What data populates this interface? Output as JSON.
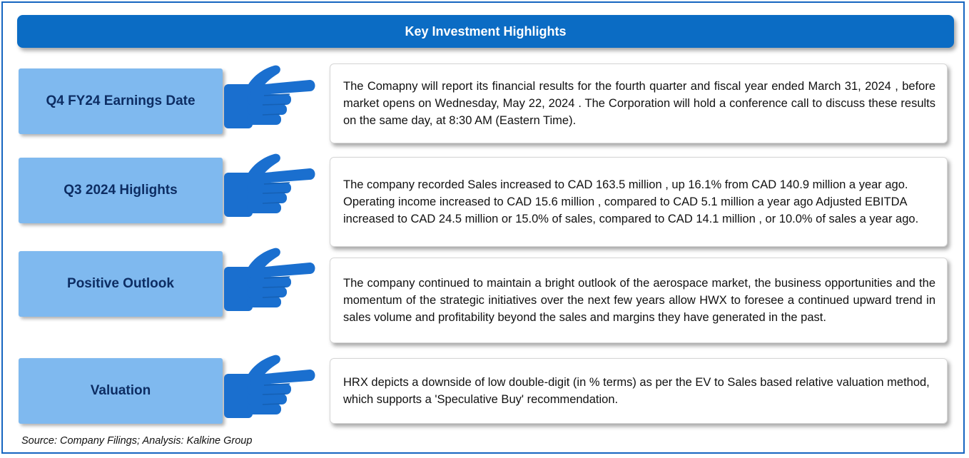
{
  "header": {
    "title": "Key Investment Highlights"
  },
  "rows": [
    {
      "label": "Q4 FY24 Earnings Date",
      "text": "The  Comapny will report its financial results for the fourth quarter and fiscal year ended March 31, 2024 , before market opens on Wednesday, May 22, 2024 . The Corporation will hold a conference call to discuss these results on the same day, at 8:30 AM (Eastern Time)."
    },
    {
      "label": "Q3 2024 Higlights",
      "text": "The company  recorded  Sales increased to CAD 163.5 million , up 16.1% from CAD 140.9 million a year ago. Operating income increased to CAD 15.6 million , compared to CAD 5.1 million a year ago Adjusted EBITDA  increased to CAD 24.5 million or 15.0% of sales, compared to CAD 14.1 million , or 10.0% of sales a year ago."
    },
    {
      "label": "Positive Outlook",
      "text": " The company continued to maintain a bright outlook of the aerospace market, the business opportunities and the momentum of the  strategic initiatives over the next few years allow HWX to foresee a continued upward trend in sales volume and profitability beyond the sales and margins they have generated in the past."
    },
    {
      "label": "Valuation",
      "text": "HRX depicts a downside of low double-digit (in % terms) as per the EV to Sales based relative valuation method, which supports a 'Speculative Buy' recommendation."
    }
  ],
  "footer": {
    "source": "Source: Company Filings; Analysis: Kalkine Group"
  },
  "icons": {
    "row_pointer": "pointing-hand-icon"
  },
  "colors": {
    "header_bg": "#0b6cc4",
    "label_bg": "#7fb9ef",
    "label_text": "#0d2d63",
    "hand": "#1a6fcf",
    "frame_border": "#1565c0"
  }
}
